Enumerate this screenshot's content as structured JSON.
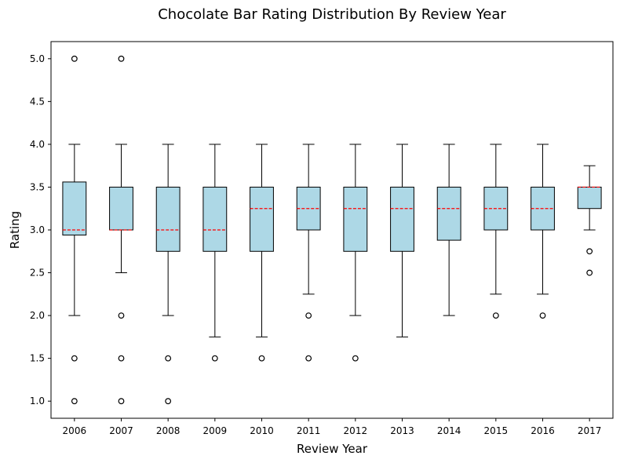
{
  "chart_data": {
    "type": "box",
    "title": "Chocolate Bar Rating Distribution By Review Year",
    "xlabel": "Review Year",
    "ylabel": "Rating",
    "ylim": [
      0.8,
      5.2
    ],
    "yticks": [
      "1.0",
      "1.5",
      "2.0",
      "2.5",
      "3.0",
      "3.5",
      "4.0",
      "4.5",
      "5.0"
    ],
    "grid": false,
    "colors": {
      "box_fill": "#add8e6",
      "median": "#ff0000",
      "lines": "#000000"
    },
    "categories": [
      "2006",
      "2007",
      "2008",
      "2009",
      "2010",
      "2011",
      "2012",
      "2013",
      "2014",
      "2015",
      "2016",
      "2017"
    ],
    "boxes": [
      {
        "category": "2006",
        "whisker_low": 2.0,
        "q1": 2.94,
        "median": 3.0,
        "q3": 3.56,
        "whisker_high": 4.0,
        "outliers": [
          5.0,
          1.5,
          1.0
        ]
      },
      {
        "category": "2007",
        "whisker_low": 2.5,
        "q1": 3.0,
        "median": 3.0,
        "q3": 3.5,
        "whisker_high": 4.0,
        "outliers": [
          5.0,
          2.0,
          1.5,
          1.0
        ]
      },
      {
        "category": "2008",
        "whisker_low": 2.0,
        "q1": 2.75,
        "median": 3.0,
        "q3": 3.5,
        "whisker_high": 4.0,
        "outliers": [
          1.5,
          1.0
        ]
      },
      {
        "category": "2009",
        "whisker_low": 1.75,
        "q1": 2.75,
        "median": 3.0,
        "q3": 3.5,
        "whisker_high": 4.0,
        "outliers": [
          1.5
        ]
      },
      {
        "category": "2010",
        "whisker_low": 1.75,
        "q1": 2.75,
        "median": 3.25,
        "q3": 3.5,
        "whisker_high": 4.0,
        "outliers": [
          1.5
        ]
      },
      {
        "category": "2011",
        "whisker_low": 2.25,
        "q1": 3.0,
        "median": 3.25,
        "q3": 3.5,
        "whisker_high": 4.0,
        "outliers": [
          2.0,
          1.5
        ]
      },
      {
        "category": "2012",
        "whisker_low": 2.0,
        "q1": 2.75,
        "median": 3.25,
        "q3": 3.5,
        "whisker_high": 4.0,
        "outliers": [
          1.5
        ]
      },
      {
        "category": "2013",
        "whisker_low": 1.75,
        "q1": 2.75,
        "median": 3.25,
        "q3": 3.5,
        "whisker_high": 4.0,
        "outliers": []
      },
      {
        "category": "2014",
        "whisker_low": 2.0,
        "q1": 2.88,
        "median": 3.25,
        "q3": 3.5,
        "whisker_high": 4.0,
        "outliers": []
      },
      {
        "category": "2015",
        "whisker_low": 2.25,
        "q1": 3.0,
        "median": 3.25,
        "q3": 3.5,
        "whisker_high": 4.0,
        "outliers": [
          2.0
        ]
      },
      {
        "category": "2016",
        "whisker_low": 2.25,
        "q1": 3.0,
        "median": 3.25,
        "q3": 3.5,
        "whisker_high": 4.0,
        "outliers": [
          2.0
        ]
      },
      {
        "category": "2017",
        "whisker_low": 3.0,
        "q1": 3.25,
        "median": 3.5,
        "q3": 3.5,
        "whisker_high": 3.75,
        "outliers": [
          2.75,
          2.5
        ]
      }
    ]
  }
}
